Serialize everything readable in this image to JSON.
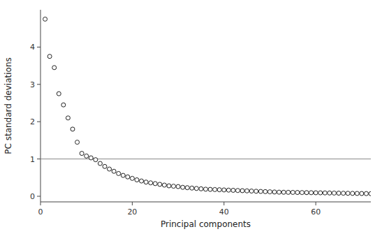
{
  "chart_data": {
    "type": "scatter",
    "xlabel": "Principal components",
    "ylabel": "PC standard deviations",
    "x": [
      1,
      2,
      3,
      4,
      5,
      6,
      7,
      8,
      9,
      10,
      11,
      12,
      13,
      14,
      15,
      16,
      17,
      18,
      19,
      20,
      21,
      22,
      23,
      24,
      25,
      26,
      27,
      28,
      29,
      30,
      31,
      32,
      33,
      34,
      35,
      36,
      37,
      38,
      39,
      40,
      41,
      42,
      43,
      44,
      45,
      46,
      47,
      48,
      49,
      50,
      51,
      52,
      53,
      54,
      55,
      56,
      57,
      58,
      59,
      60,
      61,
      62,
      63,
      64,
      65,
      66,
      67,
      68,
      69,
      70,
      71,
      72
    ],
    "values": [
      4.75,
      3.75,
      3.45,
      2.75,
      2.45,
      2.1,
      1.8,
      1.45,
      1.15,
      1.08,
      1.03,
      0.98,
      0.88,
      0.8,
      0.73,
      0.67,
      0.61,
      0.56,
      0.52,
      0.48,
      0.44,
      0.41,
      0.38,
      0.36,
      0.34,
      0.32,
      0.3,
      0.28,
      0.27,
      0.26,
      0.24,
      0.23,
      0.22,
      0.21,
      0.2,
      0.19,
      0.185,
      0.18,
      0.175,
      0.17,
      0.165,
      0.16,
      0.155,
      0.15,
      0.145,
      0.14,
      0.135,
      0.13,
      0.125,
      0.12,
      0.115,
      0.11,
      0.108,
      0.106,
      0.104,
      0.102,
      0.1,
      0.098,
      0.096,
      0.094,
      0.092,
      0.09,
      0.088,
      0.086,
      0.084,
      0.082,
      0.08,
      0.078,
      0.076,
      0.074,
      0.072,
      0.07
    ],
    "color": "#222222",
    "marker": "open-circle",
    "hline": {
      "value": 1.0,
      "color": "#888888"
    },
    "xlim": [
      0,
      72
    ],
    "ylim": [
      -0.15,
      5.0
    ],
    "xticks": [
      0,
      20,
      40,
      60
    ],
    "yticks": [
      0,
      1,
      2,
      3,
      4
    ],
    "grid": false
  }
}
